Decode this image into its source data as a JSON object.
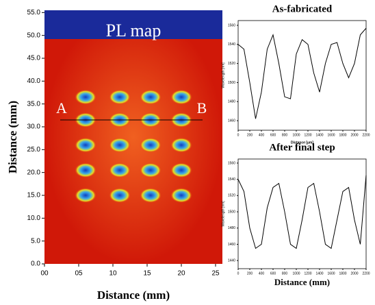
{
  "chart_data": [
    {
      "type": "scatter",
      "title": "PL map",
      "xlabel": "Distance (mm)",
      "ylabel": "Distance (mm)",
      "annotations": [
        "A",
        "B"
      ],
      "xlim": [
        0,
        26
      ],
      "ylim": [
        0,
        55.5
      ],
      "xticks": [
        {
          "value": 0,
          "label": "00"
        },
        {
          "value": 5,
          "label": "05"
        },
        10,
        15,
        20,
        25
      ],
      "yticks": [
        {
          "value": 0,
          "label": "0.0"
        },
        {
          "value": 5,
          "label": "5.0"
        },
        {
          "value": 10,
          "label": "10.0"
        },
        {
          "value": 15,
          "label": "15.0"
        },
        {
          "value": 20,
          "label": "20.0"
        },
        {
          "value": 25,
          "label": "25.0"
        },
        {
          "value": 30,
          "label": "30.0"
        },
        {
          "value": 35,
          "label": "35.0"
        },
        {
          "value": 40,
          "label": "40.0"
        },
        {
          "value": 45,
          "label": "45.0"
        },
        {
          "value": 50,
          "label": "50.0"
        },
        {
          "value": 55,
          "label": "55.0"
        }
      ],
      "x": [
        6,
        11,
        15.5,
        20,
        6,
        11,
        15.5,
        20,
        6,
        11,
        15.5,
        20,
        6,
        11,
        15.5,
        20,
        6,
        11,
        15.5,
        20
      ],
      "values": [
        36.5,
        36.5,
        36.5,
        36.5,
        31.5,
        31.5,
        31.5,
        31.5,
        26,
        26,
        26,
        26,
        20.5,
        20.5,
        20.5,
        20.5,
        15,
        15,
        15,
        15
      ],
      "color": "#3aa8e8"
    },
    {
      "type": "line",
      "title": "As-fabricated",
      "xlabel": "Distance [µm]",
      "ylabel": "Wavelength [nm]",
      "xlim": [
        0,
        2200
      ],
      "ylim": [
        1450,
        1565
      ],
      "xticks": [
        0,
        200,
        400,
        600,
        800,
        1000,
        1200,
        1400,
        1600,
        1800,
        2000,
        2200
      ],
      "yticks": [
        1460,
        1480,
        1500,
        1520,
        1540,
        1560
      ],
      "x": [
        0,
        100,
        200,
        300,
        400,
        500,
        600,
        700,
        800,
        900,
        1000,
        1100,
        1200,
        1300,
        1400,
        1500,
        1600,
        1700,
        1800,
        1900,
        2000,
        2100,
        2200
      ],
      "values": [
        1540,
        1535,
        1500,
        1462,
        1490,
        1535,
        1550,
        1520,
        1485,
        1483,
        1530,
        1545,
        1540,
        1510,
        1490,
        1520,
        1540,
        1542,
        1520,
        1505,
        1520,
        1550,
        1557
      ],
      "color": "#000000"
    },
    {
      "type": "line",
      "title": "After final step",
      "xlabel": "Distance (mm)",
      "ylabel": "Wavelength [nm]",
      "xlim": [
        0,
        2200
      ],
      "ylim": [
        1430,
        1565
      ],
      "xticks": [
        0,
        200,
        400,
        600,
        800,
        1000,
        1200,
        1400,
        1600,
        1800,
        2000,
        2200
      ],
      "yticks": [
        1440,
        1460,
        1480,
        1500,
        1520,
        1540,
        1560
      ],
      "x": [
        0,
        100,
        200,
        300,
        400,
        500,
        600,
        700,
        800,
        900,
        1000,
        1100,
        1200,
        1300,
        1400,
        1500,
        1600,
        1700,
        1800,
        1900,
        2000,
        2100,
        2200
      ],
      "values": [
        1540,
        1525,
        1480,
        1455,
        1460,
        1505,
        1530,
        1535,
        1500,
        1460,
        1455,
        1490,
        1530,
        1535,
        1500,
        1460,
        1455,
        1490,
        1525,
        1530,
        1490,
        1460,
        1545
      ],
      "color": "#000000"
    }
  ]
}
